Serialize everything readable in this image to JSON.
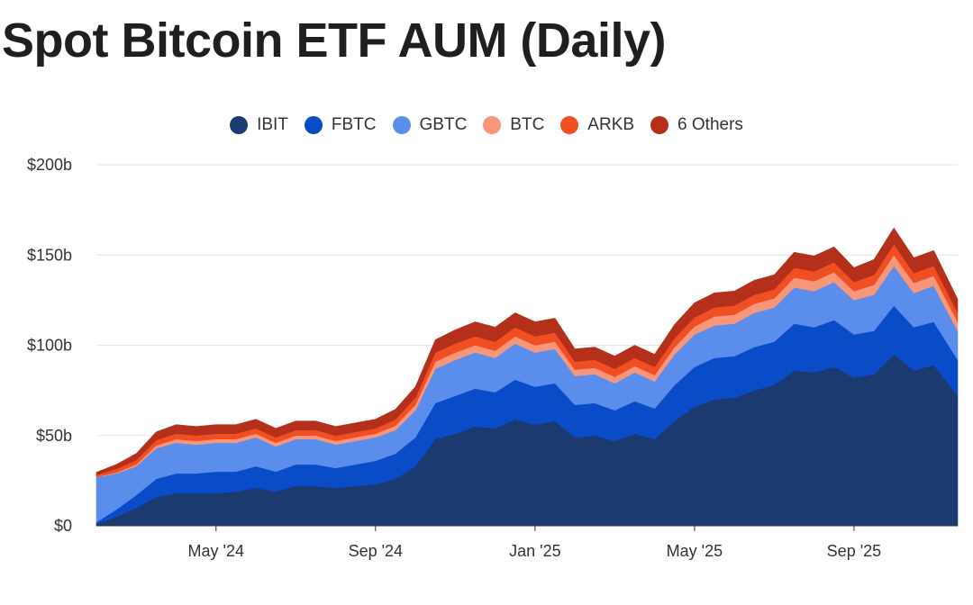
{
  "chart_data": {
    "type": "area",
    "stacked": true,
    "title": "Spot Bitcoin ETF AUM (Daily)",
    "xlabel": "",
    "ylabel": "",
    "ylim": [
      0,
      200
    ],
    "y_ticks": [
      0,
      50,
      100,
      150,
      200
    ],
    "y_tick_labels": [
      "$0",
      "$50b",
      "$100b",
      "$150b",
      "$200b"
    ],
    "x_tick_labels": [
      "May '24",
      "Sep '24",
      "Jan '25",
      "May '25",
      "Sep '25"
    ],
    "x_tick_positions": [
      3,
      7,
      11,
      15,
      19
    ],
    "x_range": [
      0,
      21.6
    ],
    "x_unit": "months since Feb 2024",
    "grid": true,
    "legend_position": "top-center",
    "x": [
      0,
      0.5,
      1,
      1.5,
      2,
      2.5,
      3,
      3.5,
      4,
      4.5,
      5,
      5.5,
      6,
      6.5,
      7,
      7.5,
      8,
      8.5,
      9,
      9.5,
      10,
      10.5,
      11,
      11.5,
      12,
      12.5,
      13,
      13.5,
      14,
      14.5,
      15,
      15.5,
      16,
      16.5,
      17,
      17.5,
      18,
      18.5,
      19,
      19.5,
      20,
      20.5,
      21,
      21.6
    ],
    "series": [
      {
        "name": "IBIT",
        "color": "#1b3a6f",
        "values": [
          1,
          5,
          10,
          16,
          18,
          18,
          18,
          19,
          21,
          19,
          22,
          22,
          21,
          22,
          23,
          26,
          33,
          48,
          51,
          55,
          54,
          59,
          56,
          58,
          49,
          50,
          47,
          51,
          48,
          58,
          66,
          70,
          71,
          75,
          78,
          86,
          85,
          88,
          82,
          84,
          95,
          86,
          89,
          72
        ]
      },
      {
        "name": "FBTC",
        "color": "#0a4bc7",
        "values": [
          1,
          4,
          7,
          10,
          11,
          11,
          12,
          11,
          12,
          11,
          12,
          12,
          11,
          12,
          13,
          14,
          16,
          20,
          21,
          21,
          20,
          22,
          21,
          21,
          18,
          18,
          17,
          18,
          17,
          20,
          22,
          23,
          23,
          24,
          24,
          26,
          25,
          26,
          24,
          24,
          27,
          24,
          24,
          20
        ]
      },
      {
        "name": "GBTC",
        "color": "#5b8ded",
        "values": [
          25,
          20,
          16,
          17,
          17,
          16,
          16,
          16,
          16,
          14,
          14,
          14,
          13,
          13,
          13,
          13,
          15,
          19,
          20,
          20,
          19,
          20,
          19,
          19,
          16,
          16,
          15,
          16,
          15,
          17,
          18,
          18,
          18,
          19,
          19,
          20,
          20,
          21,
          19,
          20,
          22,
          19,
          20,
          16
        ]
      },
      {
        "name": "BTC",
        "color": "#f8967a",
        "values": [
          0.1,
          0.5,
          1,
          1.5,
          2,
          2,
          2,
          2,
          2,
          2,
          2,
          2,
          2,
          2,
          2,
          2.5,
          3,
          4,
          4,
          4,
          4,
          4,
          4,
          4,
          3.5,
          3.5,
          3.5,
          3.5,
          3.5,
          4,
          4.5,
          5,
          5,
          5,
          5,
          5.5,
          5.5,
          5.5,
          5,
          5.5,
          6,
          5.5,
          5.5,
          5
        ]
      },
      {
        "name": "ARKB",
        "color": "#f04e23",
        "values": [
          1,
          2,
          2.5,
          3,
          3,
          3,
          3,
          3,
          3,
          3,
          3,
          3,
          3,
          3,
          3,
          3.5,
          4,
          5,
          5,
          5,
          5,
          5,
          5,
          5,
          4.5,
          4.5,
          4.5,
          4.5,
          4.5,
          5,
          5,
          5,
          5,
          5,
          5,
          5.5,
          5.5,
          5.5,
          5,
          5.5,
          6,
          5.5,
          5.5,
          5
        ]
      },
      {
        "name": "6 Others",
        "color": "#b5301a",
        "values": [
          1.5,
          2.5,
          3.5,
          4.5,
          5,
          5,
          5,
          5,
          5,
          5,
          5,
          5,
          5,
          5,
          5,
          5.5,
          6,
          7,
          7.5,
          8,
          8,
          8,
          8,
          8,
          7,
          7,
          7,
          7,
          7,
          7.5,
          8,
          8,
          8,
          8,
          8,
          8.5,
          8.5,
          8.5,
          8,
          8.5,
          9,
          8.5,
          8.5,
          7.5
        ]
      }
    ]
  }
}
